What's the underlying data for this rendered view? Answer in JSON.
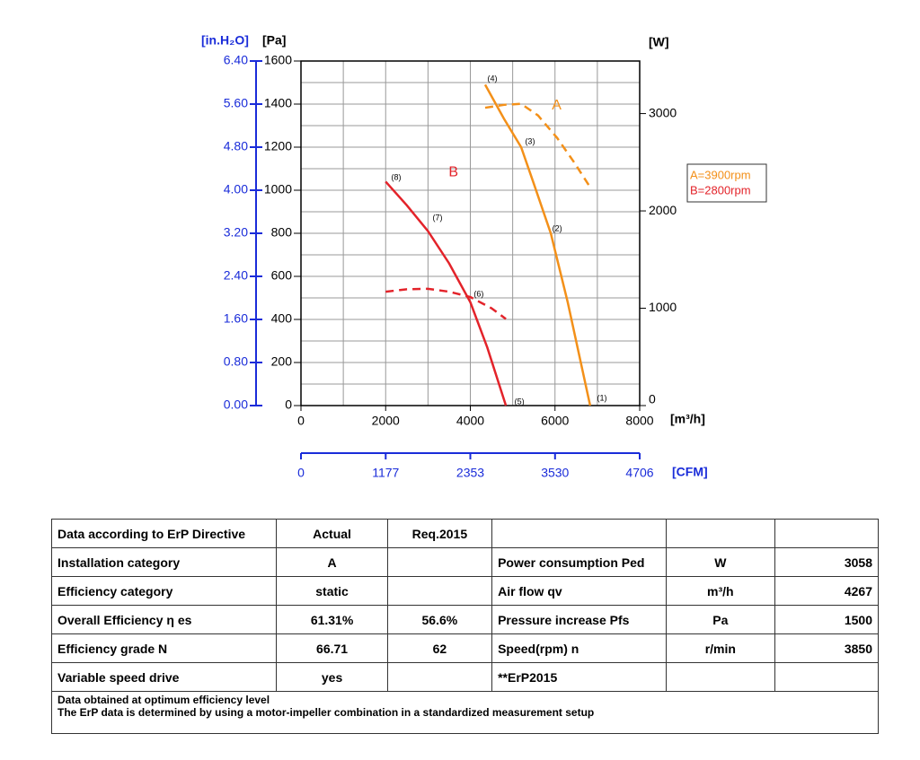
{
  "chart_data": {
    "type": "line",
    "y_label": "[Pa]",
    "y3_label": "[in.H₂O]",
    "y2_label": "[W]",
    "x_label": "[m³/h]",
    "x2_label": "[CFM]",
    "xlim": [
      0,
      8000
    ],
    "xticks": [
      0,
      2000,
      4000,
      6000,
      8000
    ],
    "x2lim": [
      0,
      4706
    ],
    "x2ticks": [
      0,
      1177,
      2353,
      3530,
      4706
    ],
    "ylim": [
      0,
      1600
    ],
    "yticks": [
      0,
      200,
      400,
      600,
      800,
      1000,
      1200,
      1400,
      1600
    ],
    "y3lim": [
      0,
      6.4
    ],
    "y3ticks": [
      {
        "value": 0,
        "label": "0.00"
      },
      {
        "value": 0.8,
        "label": "0.80"
      },
      {
        "value": 1.6,
        "label": "1.60"
      },
      {
        "value": 2.4,
        "label": "2.40"
      },
      {
        "value": 3.2,
        "label": "3.20"
      },
      {
        "value": 4,
        "label": "4.00"
      },
      {
        "value": 4.8,
        "label": "4.80"
      },
      {
        "value": 5.6,
        "label": "5.60"
      },
      {
        "value": 6.4,
        "label": "6.40"
      }
    ],
    "y2lim": [
      0,
      3540
    ],
    "y2ticks": [
      0,
      1000,
      2000,
      3000
    ],
    "grid": true,
    "series": [
      {
        "name": "A=3900rpm",
        "color": "#f39019",
        "style": "solid",
        "x": [
          4350,
          4800,
          5200,
          5500,
          5900,
          6300,
          6830
        ],
        "values": [
          1490,
          1330,
          1200,
          1030,
          800,
          480,
          0
        ]
      },
      {
        "name": "B=2800rpm",
        "color": "#e3232a",
        "style": "solid",
        "x": [
          2000,
          2500,
          3000,
          3500,
          4000,
          4400,
          4840
        ],
        "values": [
          1040,
          930,
          810,
          660,
          480,
          270,
          0
        ]
      },
      {
        "color": "#f39019",
        "style": "dashed",
        "axis": "y2",
        "x": [
          4350,
          4800,
          5200,
          5600,
          6050,
          6450,
          6850
        ],
        "values": [
          3060,
          3090,
          3100,
          2980,
          2750,
          2500,
          2230
        ]
      },
      {
        "color": "#e3232a",
        "style": "dashed",
        "axis": "y2",
        "x": [
          2000,
          2500,
          3000,
          3500,
          4000,
          4500,
          4840
        ],
        "values": [
          1170,
          1195,
          1200,
          1170,
          1115,
          1000,
          890
        ]
      }
    ],
    "annotations": [
      {
        "text": "A",
        "x": 6040,
        "y": 1392,
        "color": "#f39019"
      },
      {
        "text": "B",
        "x": 3600,
        "y": 1083,
        "color": "#e3232a"
      },
      {
        "text": "(1)",
        "x": 7110,
        "y": 33
      },
      {
        "text": "(2)",
        "x": 6050,
        "y": 820
      },
      {
        "text": "(3)",
        "x": 5410,
        "y": 1225
      },
      {
        "text": "(4)",
        "x": 4520,
        "y": 1517
      },
      {
        "text": "(5)",
        "x": 5160,
        "y": 17
      },
      {
        "text": "(6)",
        "x": 4200,
        "y": 517
      },
      {
        "text": "(7)",
        "x": 3225,
        "y": 871
      },
      {
        "text": "(8)",
        "x": 2250,
        "y": 1058
      }
    ]
  },
  "table": {
    "rows": [
      [
        "Data according to ErP Directive",
        "Actual",
        "Req.2015",
        null,
        null,
        null
      ],
      [
        "Installation category",
        "A",
        null,
        "Power consumption Ped",
        "W",
        "3058"
      ],
      [
        "Efficiency category",
        "static",
        null,
        "Air flow qv",
        "m³/h",
        "4267"
      ],
      [
        "Overall Efficiency η es",
        "61.31%",
        "56.6%",
        "Pressure increase Pfs",
        "Pa",
        "1500"
      ],
      [
        "Efficiency grade N",
        "66.71",
        "62",
        "Speed(rpm) n",
        "r/min",
        "3850"
      ],
      [
        "Variable speed drive",
        "yes",
        null,
        "**ErP2015",
        null,
        null
      ]
    ],
    "footer": [
      "Data obtained at optimum efficiency level",
      "The ErP data is determined by using a motor-impeller combination in a standardized measurement setup"
    ]
  }
}
